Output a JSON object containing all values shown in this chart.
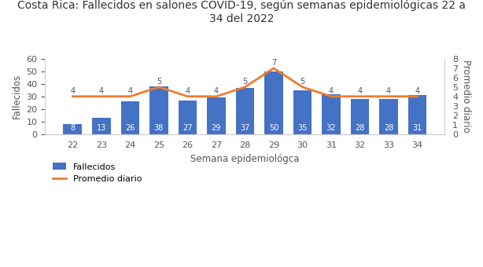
{
  "title": "Costa Rica: Fallecidos en salones COVID-19, según semanas epidemiológicas 22 a\n34 del 2022",
  "xlabel": "Semana epidemiológca",
  "ylabel_left": "Fallecidos",
  "ylabel_right": "Promedio diario",
  "semanas": [
    22,
    23,
    24,
    25,
    26,
    27,
    28,
    29,
    30,
    31,
    32,
    33,
    34
  ],
  "fallecidos": [
    8,
    13,
    26,
    38,
    27,
    29,
    37,
    50,
    35,
    32,
    28,
    28,
    31
  ],
  "promedio": [
    4,
    4,
    4,
    5,
    4,
    4,
    5,
    7,
    5,
    4,
    4,
    4,
    4
  ],
  "bar_color": "#4472C4",
  "line_color": "#ED7D31",
  "ylim_left": [
    0,
    60
  ],
  "ylim_right": [
    0,
    8
  ],
  "yticks_left": [
    0,
    10,
    20,
    30,
    40,
    50,
    60
  ],
  "yticks_right": [
    0,
    1,
    2,
    3,
    4,
    5,
    6,
    7,
    8
  ],
  "legend_labels": [
    "Fallecidos",
    "Promedio diario"
  ],
  "title_fontsize": 10,
  "axis_label_fontsize": 8.5,
  "tick_fontsize": 8,
  "bar_annotation_fontsize": 7,
  "line_annotation_fontsize": 7,
  "background_color": "#ffffff",
  "spine_color": "#cccccc",
  "text_color": "#555555"
}
